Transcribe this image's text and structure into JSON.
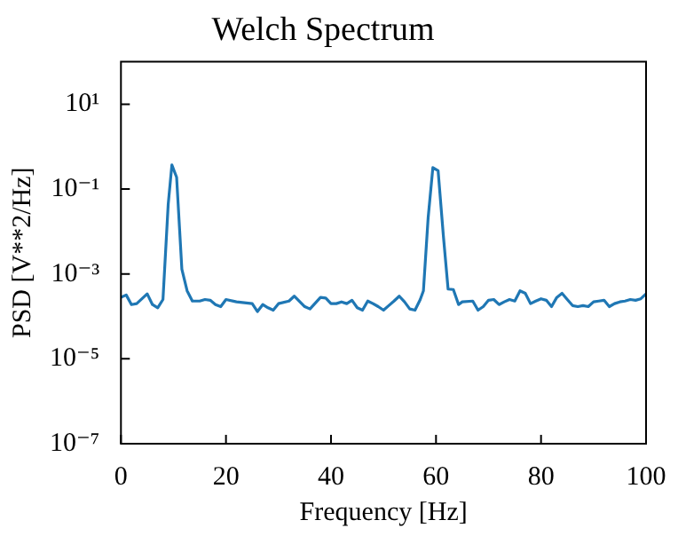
{
  "chart_data": {
    "type": "line",
    "title": "Welch Spectrum",
    "xlabel": "Frequency [Hz]",
    "ylabel": "PSD [V**2/Hz]",
    "log": "y",
    "grid": false,
    "xlim": [
      0,
      100
    ],
    "xticks": [
      0,
      20,
      40,
      60,
      80,
      100
    ],
    "ylim": [
      1e-07,
      100
    ],
    "yticks": [
      {
        "value": 1e-07,
        "label": "10⁻⁷"
      },
      {
        "value": 1e-05,
        "label": "10⁻⁵"
      },
      {
        "value": 0.001,
        "label": "10⁻³"
      },
      {
        "value": 0.1,
        "label": "10⁻¹"
      },
      {
        "value": 10,
        "label": "10¹"
      }
    ],
    "x": [
      0,
      1,
      2,
      3,
      5,
      6,
      7,
      8,
      9,
      9.7,
      10.6,
      11.6,
      12.6,
      13.6,
      15,
      16,
      17,
      18,
      19,
      20,
      22,
      25,
      26,
      27,
      28,
      29,
      30,
      32,
      33,
      35,
      36,
      38,
      39,
      40,
      41,
      42,
      43,
      44,
      45,
      46,
      47,
      48,
      49,
      50,
      51,
      52,
      53,
      54,
      55,
      56,
      57,
      57.6,
      58.5,
      59.4,
      60.4,
      61.4,
      62.3,
      63.3,
      64.3,
      65,
      67,
      68,
      69,
      70,
      71,
      72,
      73,
      74,
      75,
      76,
      77,
      78,
      79,
      80,
      81,
      82,
      83,
      84,
      85,
      86,
      87,
      88,
      89,
      90,
      91,
      92,
      93,
      94,
      95,
      96,
      97,
      98,
      99,
      100
    ],
    "series": [
      {
        "color": "#1f77b4",
        "values": [
          0.00028,
          0.00032,
          0.00019,
          0.0002,
          0.00034,
          0.00019,
          0.00016,
          0.00025,
          0.044,
          0.37,
          0.19,
          0.0013,
          0.0004,
          0.00023,
          0.00023,
          0.00025,
          0.00024,
          0.00019,
          0.00017,
          0.00025,
          0.00022,
          0.0002,
          0.00013,
          0.00019,
          0.00016,
          0.00014,
          0.0002,
          0.00023,
          0.0003,
          0.00017,
          0.00015,
          0.00028,
          0.00027,
          0.0002,
          0.0002,
          0.00022,
          0.0002,
          0.00024,
          0.00016,
          0.00014,
          0.00023,
          0.0002,
          0.00017,
          0.00014,
          0.00018,
          0.00023,
          0.0003,
          0.00022,
          0.00015,
          0.00014,
          0.00025,
          0.0004,
          0.021,
          0.32,
          0.27,
          0.008,
          0.00044,
          0.00043,
          0.00019,
          0.00022,
          0.00023,
          0.00014,
          0.00017,
          0.00024,
          0.00025,
          0.00019,
          0.00022,
          0.00025,
          0.00023,
          0.0004,
          0.00035,
          0.0002,
          0.00023,
          0.00026,
          0.00024,
          0.00017,
          0.00028,
          0.00035,
          0.00025,
          0.00018,
          0.00017,
          0.00018,
          0.00017,
          0.00022,
          0.00023,
          0.00024,
          0.00017,
          0.0002,
          0.00022,
          0.00023,
          0.00025,
          0.00024,
          0.00026,
          0.00034
        ]
      }
    ]
  }
}
